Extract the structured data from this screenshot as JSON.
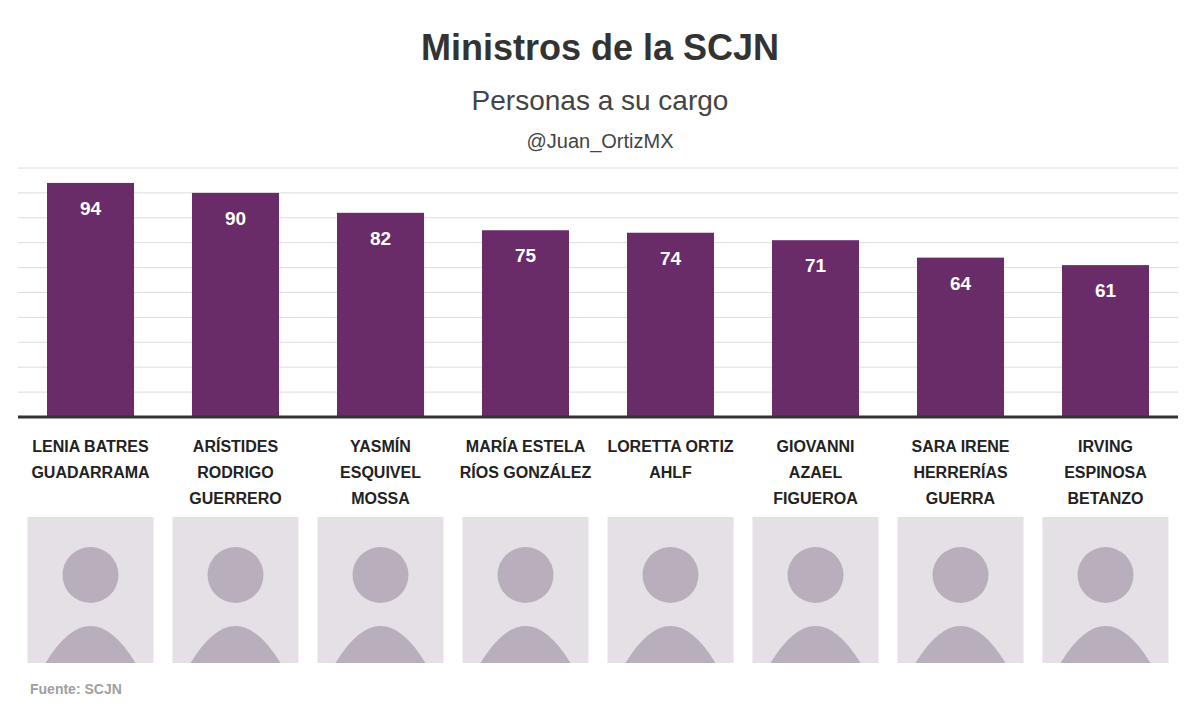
{
  "chart_data": {
    "type": "bar",
    "title": "Ministros de la SCJN",
    "subtitle": "Personas a su cargo",
    "annotations": [
      "@Juan_OrtizMX",
      "Fuente: SCJN"
    ],
    "categories": [
      "LENIA BATRES GUADARRAMA",
      "ARÍSTIDES RODRIGO GUERRERO",
      "YASMÍN ESQUIVEL MOSSA",
      "MARÍA ESTELA RÍOS GONZÁLEZ",
      "LORETTA ORTIZ AHLF",
      "GIOVANNI AZAEL FIGUEROA",
      "SARA IRENE HERRERÍAS GUERRA",
      "IRVING ESPINOSA BETANZO"
    ],
    "values": [
      94,
      90,
      82,
      75,
      74,
      71,
      64,
      61
    ],
    "color": "#6a2c68",
    "ylim": [
      0,
      100
    ],
    "yticks": [
      0,
      10,
      20,
      30,
      40,
      50,
      60,
      70,
      80,
      90,
      100
    ],
    "grid": true,
    "data_labels": true,
    "tick_labels": false
  }
}
